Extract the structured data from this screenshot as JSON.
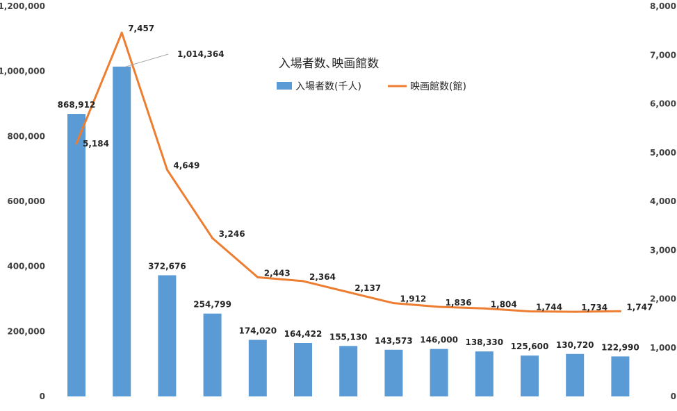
{
  "chart_data": {
    "type": "bar",
    "title": "入場者数､映画館数",
    "categories": [
      "",
      "",
      "",
      "",
      "",
      "",
      "",
      "",
      "",
      "",
      "",
      "",
      ""
    ],
    "series": [
      {
        "name": "入場者数(千人)",
        "type": "bar",
        "axis": "left",
        "color": "#5b9bd5",
        "values": [
          868912,
          1014364,
          372676,
          254799,
          174020,
          164422,
          155130,
          143573,
          146000,
          138330,
          125600,
          130720,
          122990
        ],
        "labels": [
          "868,912",
          "1,014,364",
          "372,676",
          "254,799",
          "174,020",
          "164,422",
          "155,130",
          "143,573",
          "146,000",
          "138,330",
          "125,600",
          "130,720",
          "122,990"
        ]
      },
      {
        "name": "映画館数(館)",
        "type": "line",
        "axis": "right",
        "color": "#ed7d31",
        "values": [
          5184,
          7457,
          4649,
          3246,
          2443,
          2364,
          2137,
          1912,
          1836,
          1804,
          1744,
          1734,
          1747
        ],
        "labels": [
          "5,184",
          "7,457",
          "4,649",
          "3,246",
          "2,443",
          "2,364",
          "2,137",
          "1,912",
          "1,836",
          "1,804",
          "1,744",
          "1,734",
          "1,747"
        ]
      }
    ],
    "y_left": {
      "range": [
        0,
        1200000
      ],
      "ticks": [
        0,
        200000,
        400000,
        600000,
        800000,
        1000000,
        1200000
      ],
      "tick_labels": [
        "0",
        "200,000",
        "400,000",
        "600,000",
        "800,000",
        "1,000,000",
        "1,200,000"
      ]
    },
    "y_right": {
      "range": [
        0,
        8000
      ],
      "ticks": [
        0,
        1000,
        2000,
        3000,
        4000,
        5000,
        6000,
        7000,
        8000
      ],
      "tick_labels": [
        "0",
        "1,000",
        "2,000",
        "3,000",
        "4,000",
        "5,000",
        "6,000",
        "7,000",
        "8,000"
      ]
    },
    "grid": false,
    "legend": "top-center"
  }
}
